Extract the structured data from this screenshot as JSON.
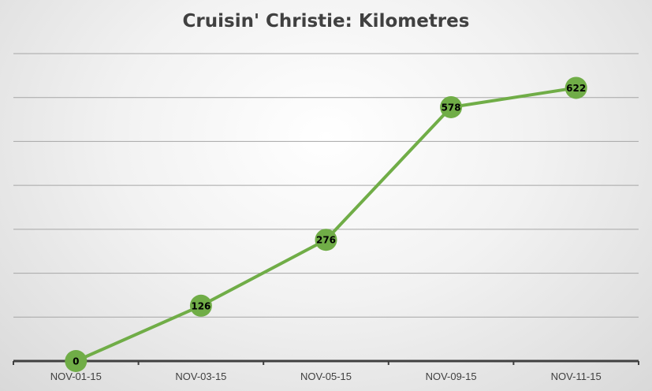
{
  "chart_data": {
    "type": "line",
    "title": "Cruisin' Christie: Kilometres",
    "categories": [
      "NOV-01-15",
      "NOV-03-15",
      "NOV-05-15",
      "NOV-09-15",
      "NOV-11-15"
    ],
    "series": [
      {
        "values": [
          0,
          126,
          276,
          578,
          622
        ]
      }
    ],
    "data_labels": [
      "0",
      "126",
      "276",
      "578",
      "622"
    ],
    "ylim": [
      0,
      700
    ],
    "y_gridline_step": 100,
    "y_tick_labels_shown": false,
    "grid": true,
    "legend": "none",
    "colors": {
      "line": "#70ad47",
      "marker": "#70ad47",
      "gridline": "#a6a6a6",
      "axis": "#404040",
      "label": "#000000"
    }
  }
}
